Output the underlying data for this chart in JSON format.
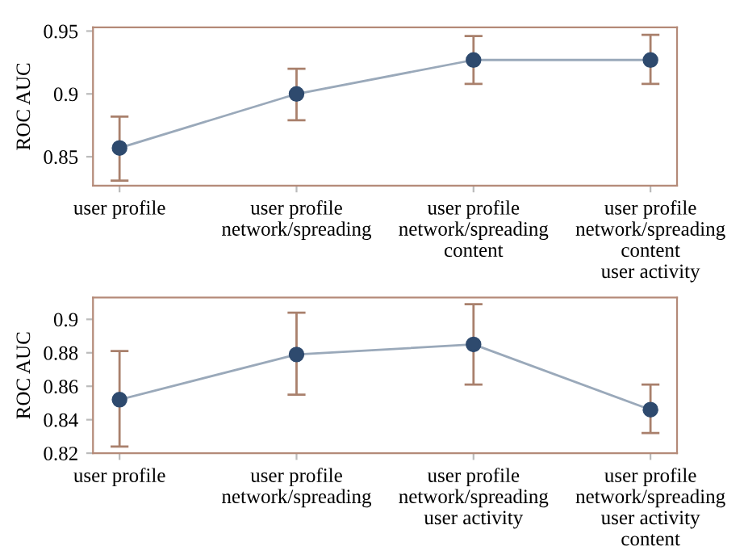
{
  "chart_data": [
    {
      "type": "line",
      "ylabel": "ROC AUC",
      "categories": [
        "user profile",
        "user profile\nnetwork/spreading",
        "user profile\nnetwork/spreading\ncontent",
        "user profile\nnetwork/spreading\ncontent\nuser activity"
      ],
      "series": [
        {
          "color": "#2e4a6e",
          "values": [
            0.857,
            0.9,
            0.927,
            0.927
          ],
          "errors": [
            [
              0.831,
              0.882
            ],
            [
              0.879,
              0.92
            ],
            [
              0.908,
              0.946
            ],
            [
              0.908,
              0.947
            ]
          ]
        }
      ],
      "ylim": [
        0.827,
        0.953
      ],
      "yticks": [
        0.85,
        0.9,
        0.95
      ],
      "marker": "circle",
      "line_style": "solid",
      "grid": false,
      "legend": false
    },
    {
      "type": "line",
      "ylabel": "ROC AUC",
      "categories": [
        "user profile",
        "user profile\nnetwork/spreading",
        "user profile\nnetwork/spreading\nuser activity",
        "user profile\nnetwork/spreading\nuser activity\ncontent"
      ],
      "series": [
        {
          "color": "#2e4a6e",
          "values": [
            0.852,
            0.879,
            0.885,
            0.846
          ],
          "errors": [
            [
              0.824,
              0.881
            ],
            [
              0.855,
              0.904
            ],
            [
              0.861,
              0.909
            ],
            [
              0.832,
              0.861
            ]
          ]
        }
      ],
      "ylim": [
        0.82,
        0.913
      ],
      "yticks": [
        0.82,
        0.84,
        0.86,
        0.88,
        0.9
      ],
      "marker": "circle",
      "line_style": "solid",
      "grid": false,
      "legend": false
    }
  ]
}
